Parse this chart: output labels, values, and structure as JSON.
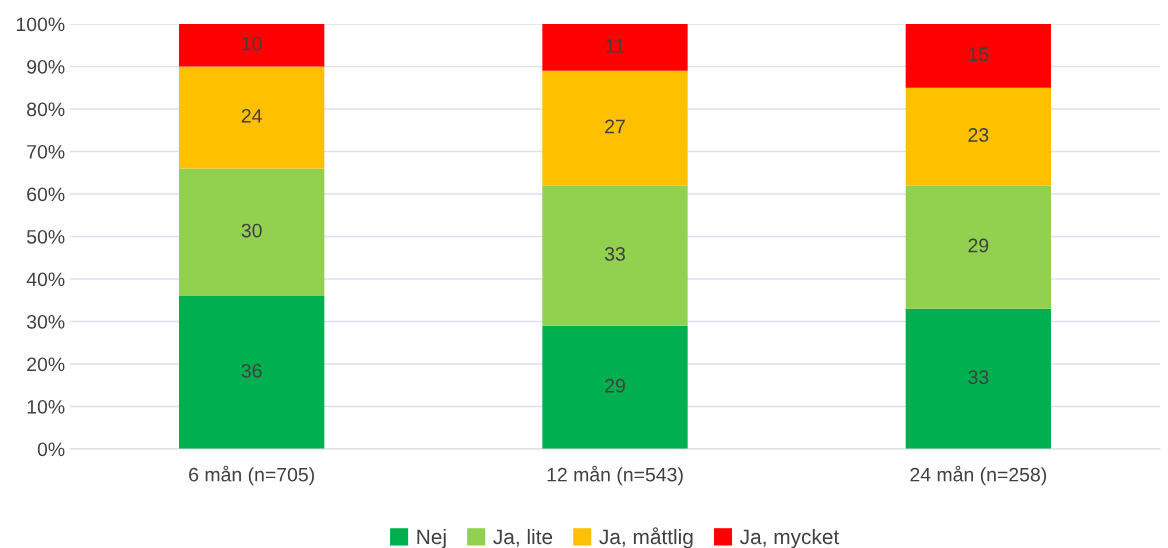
{
  "chart_data": {
    "type": "bar",
    "stacked": true,
    "categories": [
      "6 mån (n=705)",
      "12 mån (n=543)",
      "24 mån (n=258)"
    ],
    "series": [
      {
        "name": "Nej",
        "color": "#00b050",
        "values": [
          36,
          29,
          33
        ]
      },
      {
        "name": "Ja, lite",
        "color": "#92d050",
        "values": [
          30,
          33,
          29
        ]
      },
      {
        "name": "Ja, måttlig",
        "color": "#ffc000",
        "values": [
          24,
          27,
          23
        ]
      },
      {
        "name": "Ja, mycket",
        "color": "#ff0000",
        "values": [
          10,
          11,
          15
        ]
      }
    ],
    "ylim": [
      0,
      100
    ],
    "yticks": [
      {
        "value": 0,
        "label": "0%"
      },
      {
        "value": 10,
        "label": "10%"
      },
      {
        "value": 20,
        "label": "20%"
      },
      {
        "value": 30,
        "label": "30%"
      },
      {
        "value": 40,
        "label": "40%"
      },
      {
        "value": 50,
        "label": "50%"
      },
      {
        "value": 60,
        "label": "60%"
      },
      {
        "value": 70,
        "label": "70%"
      },
      {
        "value": 80,
        "label": "80%"
      },
      {
        "value": 90,
        "label": "90%"
      },
      {
        "value": 100,
        "label": "100%"
      }
    ],
    "grid": "y",
    "legend": "bottom",
    "data_labels": true
  }
}
